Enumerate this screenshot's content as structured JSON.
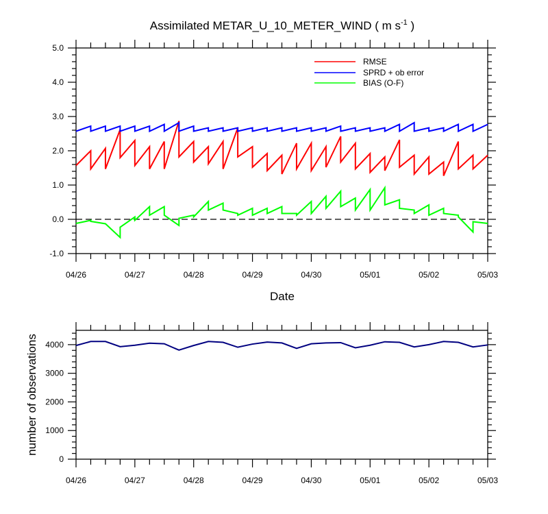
{
  "chart_data": [
    {
      "type": "line",
      "title": "Assimilated METAR_U_10_METER_WIND",
      "units": "m s",
      "units_superscript": "-1",
      "xlabel": "Date",
      "ylabel": "",
      "xlim": [
        0,
        7
      ],
      "ylim": [
        -1.0,
        5.0
      ],
      "yticks": [
        "-1.0",
        "0.0",
        "1.0",
        "2.0",
        "3.0",
        "4.0",
        "5.0"
      ],
      "ytick_values": [
        -1,
        0,
        1,
        2,
        3,
        4,
        5
      ],
      "xticks": [
        "04/26",
        "04/27",
        "04/28",
        "04/29",
        "04/30",
        "05/01",
        "05/02",
        "05/03"
      ],
      "grid": false,
      "legend_position": "top-right",
      "zero_line": true,
      "series": [
        {
          "name": "RMSE",
          "color": "#ff0000",
          "x": [
            0,
            0.25,
            0.25,
            0.5,
            0.5,
            0.75,
            0.75,
            1,
            1,
            1.25,
            1.25,
            1.5,
            1.5,
            1.75,
            1.75,
            2,
            2,
            2.25,
            2.25,
            2.5,
            2.5,
            2.75,
            2.75,
            3,
            3,
            3.25,
            3.25,
            3.5,
            3.5,
            3.75,
            3.75,
            4,
            4,
            4.25,
            4.25,
            4.5,
            4.5,
            4.75,
            4.75,
            5,
            5,
            5.25,
            5.25,
            5.5,
            5.5,
            5.75,
            5.75,
            6,
            6,
            6.25,
            6.25,
            6.5,
            6.5,
            6.75,
            6.75,
            7
          ],
          "y": [
            1.57,
            2.0,
            1.47,
            2.07,
            1.47,
            2.62,
            1.8,
            2.3,
            1.57,
            2.12,
            1.47,
            2.27,
            1.47,
            2.87,
            1.82,
            2.27,
            1.67,
            2.12,
            1.62,
            2.27,
            1.47,
            2.67,
            1.82,
            2.12,
            1.52,
            1.92,
            1.42,
            1.87,
            1.32,
            2.22,
            1.47,
            2.22,
            1.42,
            2.12,
            1.52,
            2.42,
            1.67,
            2.22,
            1.47,
            1.92,
            1.37,
            1.82,
            1.42,
            2.32,
            1.52,
            1.87,
            1.32,
            1.82,
            1.32,
            1.67,
            1.27,
            2.27,
            1.47,
            1.87,
            1.47,
            1.87
          ]
        },
        {
          "name": "SPRD + ob error",
          "color": "#0000ff",
          "x": [
            0,
            0.25,
            0.25,
            0.5,
            0.5,
            0.75,
            0.75,
            1,
            1,
            1.25,
            1.25,
            1.5,
            1.5,
            1.75,
            1.75,
            2,
            2,
            2.25,
            2.25,
            2.5,
            2.5,
            2.75,
            2.75,
            3,
            3,
            3.25,
            3.25,
            3.5,
            3.5,
            3.75,
            3.75,
            4,
            4,
            4.25,
            4.25,
            4.5,
            4.5,
            4.75,
            4.75,
            5,
            5,
            5.25,
            5.25,
            5.5,
            5.5,
            5.75,
            5.75,
            6,
            6,
            6.25,
            6.25,
            6.5,
            6.5,
            6.75,
            6.75,
            7
          ],
          "y": [
            2.57,
            2.72,
            2.57,
            2.72,
            2.57,
            2.72,
            2.57,
            2.72,
            2.57,
            2.72,
            2.57,
            2.77,
            2.57,
            2.82,
            2.57,
            2.72,
            2.57,
            2.67,
            2.57,
            2.67,
            2.57,
            2.67,
            2.57,
            2.67,
            2.57,
            2.67,
            2.57,
            2.67,
            2.57,
            2.67,
            2.57,
            2.67,
            2.57,
            2.67,
            2.57,
            2.72,
            2.57,
            2.67,
            2.57,
            2.67,
            2.57,
            2.67,
            2.57,
            2.77,
            2.57,
            2.82,
            2.57,
            2.67,
            2.57,
            2.67,
            2.57,
            2.77,
            2.57,
            2.77,
            2.57,
            2.77
          ]
        },
        {
          "name": "BIAS (O-F)",
          "color": "#00ff00",
          "x": [
            0,
            0.25,
            0.25,
            0.5,
            0.5,
            0.75,
            0.75,
            1,
            1,
            1.25,
            1.25,
            1.5,
            1.5,
            1.75,
            1.75,
            2,
            2,
            2.25,
            2.25,
            2.5,
            2.5,
            2.75,
            2.75,
            3,
            3,
            3.25,
            3.25,
            3.5,
            3.5,
            3.75,
            3.75,
            4,
            4,
            4.25,
            4.25,
            4.5,
            4.5,
            4.75,
            4.75,
            5,
            5,
            5.25,
            5.25,
            5.5,
            5.5,
            5.75,
            5.75,
            6,
            6,
            6.25,
            6.25,
            6.5,
            6.5,
            6.75,
            6.75,
            7
          ],
          "y": [
            -0.12,
            -0.03,
            -0.06,
            -0.13,
            -0.13,
            -0.53,
            -0.23,
            0.07,
            -0.03,
            0.37,
            0.12,
            0.37,
            0.12,
            -0.18,
            0.03,
            0.12,
            0.07,
            0.52,
            0.27,
            0.47,
            0.27,
            0.17,
            0.12,
            0.32,
            0.12,
            0.32,
            0.17,
            0.37,
            0.17,
            0.17,
            0.12,
            0.52,
            0.17,
            0.67,
            0.32,
            0.82,
            0.37,
            0.62,
            0.27,
            0.87,
            0.27,
            0.92,
            0.42,
            0.57,
            0.32,
            0.27,
            0.17,
            0.42,
            0.12,
            0.32,
            0.17,
            0.12,
            0.07,
            -0.37,
            -0.07,
            -0.12
          ]
        }
      ]
    },
    {
      "type": "line",
      "title": "",
      "xlabel": "",
      "ylabel": "number of observations",
      "xlim": [
        0,
        7
      ],
      "ylim": [
        0,
        4500
      ],
      "yticks": [
        "0",
        "1000",
        "2000",
        "3000",
        "4000"
      ],
      "ytick_values": [
        0,
        1000,
        2000,
        3000,
        4000
      ],
      "xticks": [
        "04/26",
        "04/27",
        "04/28",
        "04/29",
        "04/30",
        "05/01",
        "05/02",
        "05/03"
      ],
      "grid": false,
      "series": [
        {
          "name": "",
          "color": "#000080",
          "x": [
            0,
            0.25,
            0.5,
            0.75,
            1,
            1.25,
            1.5,
            1.75,
            2,
            2.25,
            2.5,
            2.75,
            3,
            3.25,
            3.5,
            3.75,
            4,
            4.25,
            4.5,
            4.75,
            5,
            5.25,
            5.5,
            5.75,
            6,
            6.25,
            6.5,
            6.75,
            7
          ],
          "y": [
            3970,
            4110,
            4110,
            3930,
            3980,
            4050,
            4030,
            3810,
            3970,
            4110,
            4080,
            3910,
            4020,
            4090,
            4060,
            3870,
            4030,
            4060,
            4070,
            3890,
            3980,
            4100,
            4080,
            3920,
            4000,
            4110,
            4080,
            3920,
            3990
          ]
        }
      ]
    }
  ]
}
